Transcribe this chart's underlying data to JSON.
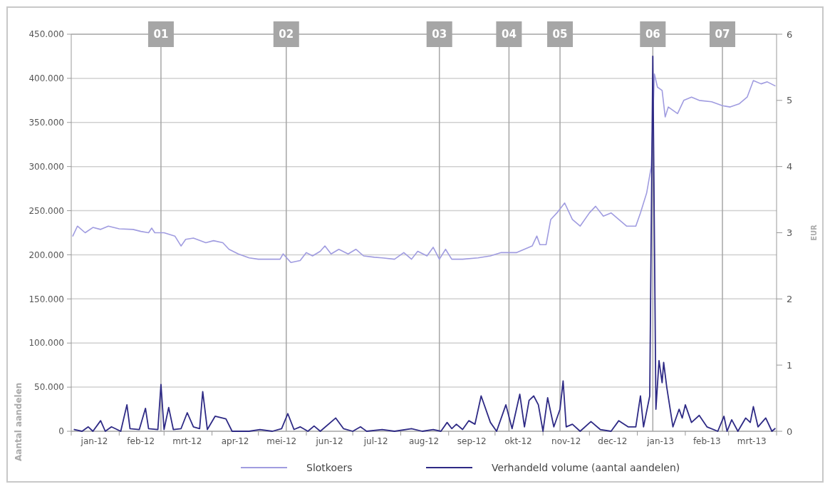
{
  "chart_data": {
    "type": "line",
    "ylabel": "Aantal aandelen",
    "y2label": "EUR",
    "xlim": [
      "2012-01-01",
      "2013-04-01"
    ],
    "xticks": [
      {
        "value": "2012-01-01",
        "label": null
      },
      {
        "value": "2012-01-16",
        "label": "jan-12"
      },
      {
        "value": "2012-02-01",
        "label": null
      },
      {
        "value": "2012-02-15",
        "label": "feb-12"
      },
      {
        "value": "2012-03-01",
        "label": null
      },
      {
        "value": "2012-03-16",
        "label": "mrt-12"
      },
      {
        "value": "2012-04-01",
        "label": null
      },
      {
        "value": "2012-04-16",
        "label": "apr-12"
      },
      {
        "value": "2012-05-01",
        "label": null
      },
      {
        "value": "2012-05-16",
        "label": "mei-12"
      },
      {
        "value": "2012-06-01",
        "label": null
      },
      {
        "value": "2012-06-16",
        "label": "jun-12"
      },
      {
        "value": "2012-07-01",
        "label": null
      },
      {
        "value": "2012-07-16",
        "label": "jul-12"
      },
      {
        "value": "2012-08-01",
        "label": null
      },
      {
        "value": "2012-08-16",
        "label": "aug-12"
      },
      {
        "value": "2012-09-01",
        "label": null
      },
      {
        "value": "2012-09-16",
        "label": "sep-12"
      },
      {
        "value": "2012-10-01",
        "label": null
      },
      {
        "value": "2012-10-16",
        "label": "okt-12"
      },
      {
        "value": "2012-11-01",
        "label": null
      },
      {
        "value": "2012-11-16",
        "label": "nov-12"
      },
      {
        "value": "2012-12-01",
        "label": null
      },
      {
        "value": "2012-12-16",
        "label": "dec-12"
      },
      {
        "value": "2013-01-01",
        "label": null
      },
      {
        "value": "2013-01-16",
        "label": "jan-13"
      },
      {
        "value": "2013-02-01",
        "label": null
      },
      {
        "value": "2013-02-15",
        "label": "feb-13"
      },
      {
        "value": "2013-03-01",
        "label": null
      },
      {
        "value": "2013-03-16",
        "label": "mrt-13"
      },
      {
        "value": "2013-04-01",
        "label": null
      }
    ],
    "ylim": [
      0,
      450000
    ],
    "yticks": [
      {
        "value": 0,
        "label": "0"
      },
      {
        "value": 50000,
        "label": "50.000"
      },
      {
        "value": 100000,
        "label": "100.000"
      },
      {
        "value": 150000,
        "label": "150.000"
      },
      {
        "value": 200000,
        "label": "200.000"
      },
      {
        "value": 250000,
        "label": "250.000"
      },
      {
        "value": 300000,
        "label": "300.000"
      },
      {
        "value": 350000,
        "label": "350.000"
      },
      {
        "value": 400000,
        "label": "400.000"
      },
      {
        "value": 450000,
        "label": "450.000"
      }
    ],
    "y2lim": [
      0,
      6
    ],
    "y2ticks": [
      0,
      1,
      2,
      3,
      4,
      5,
      6
    ],
    "grid": "y",
    "legend": "bottom",
    "ref_lines": [
      {
        "axis": "x",
        "value": "2012-02-28",
        "label": "01",
        "color": "#a6a6a6"
      },
      {
        "axis": "x",
        "value": "2012-05-19",
        "label": "02",
        "color": "#a6a6a6"
      },
      {
        "axis": "x",
        "value": "2012-08-26",
        "label": "03",
        "color": "#a6a6a6"
      },
      {
        "axis": "x",
        "value": "2012-10-10",
        "label": "04",
        "color": "#a6a6a6"
      },
      {
        "axis": "x",
        "value": "2012-11-12",
        "label": "05",
        "color": "#a6a6a6"
      },
      {
        "axis": "x",
        "value": "2013-01-11",
        "label": "06",
        "color": "#a6a6a6"
      },
      {
        "axis": "x",
        "value": "2013-02-25",
        "label": "07",
        "color": "#a6a6a6"
      }
    ],
    "series": [
      {
        "name": "Slotkoers",
        "color": "#a09ce0",
        "axis": "y2",
        "x": [
          "2012-01-02",
          "2012-01-05",
          "2012-01-10",
          "2012-01-15",
          "2012-01-20",
          "2012-01-25",
          "2012-02-01",
          "2012-02-10",
          "2012-02-15",
          "2012-02-20",
          "2012-02-22",
          "2012-02-24",
          "2012-03-01",
          "2012-03-08",
          "2012-03-12",
          "2012-03-15",
          "2012-03-20",
          "2012-03-28",
          "2012-04-02",
          "2012-04-08",
          "2012-04-12",
          "2012-04-18",
          "2012-04-25",
          "2012-05-01",
          "2012-05-08",
          "2012-05-15",
          "2012-05-17",
          "2012-05-22",
          "2012-05-28",
          "2012-06-01",
          "2012-06-05",
          "2012-06-10",
          "2012-06-13",
          "2012-06-17",
          "2012-06-22",
          "2012-06-28",
          "2012-07-03",
          "2012-07-08",
          "2012-07-15",
          "2012-07-20",
          "2012-07-28",
          "2012-08-03",
          "2012-08-08",
          "2012-08-12",
          "2012-08-18",
          "2012-08-22",
          "2012-08-26",
          "2012-08-30",
          "2012-09-03",
          "2012-09-10",
          "2012-09-20",
          "2012-09-28",
          "2012-10-05",
          "2012-10-15",
          "2012-10-25",
          "2012-10-28",
          "2012-10-30",
          "2012-11-03",
          "2012-11-06",
          "2012-11-10",
          "2012-11-15",
          "2012-11-20",
          "2012-11-25",
          "2012-12-01",
          "2012-12-05",
          "2012-12-10",
          "2012-12-15",
          "2012-12-25",
          "2012-12-31",
          "2013-01-03",
          "2013-01-07",
          "2013-01-10",
          "2013-01-12",
          "2013-01-14",
          "2013-01-17",
          "2013-01-19",
          "2013-01-21",
          "2013-01-27",
          "2013-01-31",
          "2013-02-05",
          "2013-02-10",
          "2013-02-18",
          "2013-02-25",
          "2013-03-02",
          "2013-03-08",
          "2013-03-13",
          "2013-03-17",
          "2013-03-22",
          "2013-03-26",
          "2013-03-31"
        ],
        "values": [
          2.95,
          3.1,
          3.0,
          3.08,
          3.05,
          3.1,
          3.06,
          3.05,
          3.02,
          3.0,
          3.07,
          3.0,
          3.0,
          2.95,
          2.8,
          2.9,
          2.92,
          2.85,
          2.88,
          2.85,
          2.75,
          2.68,
          2.62,
          2.6,
          2.6,
          2.6,
          2.68,
          2.55,
          2.58,
          2.7,
          2.65,
          2.72,
          2.8,
          2.68,
          2.75,
          2.68,
          2.75,
          2.65,
          2.63,
          2.62,
          2.6,
          2.7,
          2.6,
          2.72,
          2.65,
          2.78,
          2.6,
          2.75,
          2.6,
          2.6,
          2.62,
          2.65,
          2.7,
          2.7,
          2.8,
          2.95,
          2.82,
          2.82,
          3.2,
          3.3,
          3.45,
          3.2,
          3.1,
          3.3,
          3.4,
          3.25,
          3.3,
          3.1,
          3.1,
          3.3,
          3.6,
          4.0,
          5.4,
          5.2,
          5.15,
          4.75,
          4.9,
          4.8,
          5.0,
          5.05,
          5.0,
          4.98,
          4.92,
          4.9,
          4.95,
          5.05,
          5.3,
          5.25,
          5.28,
          5.22
        ]
      },
      {
        "name": "Verhandeld volume (aantal aandelen)",
        "color": "#2e2a85",
        "axis": "y",
        "x": [
          "2012-01-03",
          "2012-01-08",
          "2012-01-12",
          "2012-01-15",
          "2012-01-20",
          "2012-01-23",
          "2012-01-27",
          "2012-02-02",
          "2012-02-06",
          "2012-02-08",
          "2012-02-14",
          "2012-02-18",
          "2012-02-20",
          "2012-02-26",
          "2012-02-28",
          "2012-03-01",
          "2012-03-04",
          "2012-03-07",
          "2012-03-12",
          "2012-03-16",
          "2012-03-20",
          "2012-03-24",
          "2012-03-26",
          "2012-03-29",
          "2012-04-03",
          "2012-04-10",
          "2012-04-14",
          "2012-04-25",
          "2012-05-02",
          "2012-05-10",
          "2012-05-16",
          "2012-05-20",
          "2012-05-24",
          "2012-05-28",
          "2012-06-02",
          "2012-06-06",
          "2012-06-10",
          "2012-06-20",
          "2012-06-25",
          "2012-07-01",
          "2012-07-06",
          "2012-07-10",
          "2012-07-20",
          "2012-07-28",
          "2012-08-08",
          "2012-08-15",
          "2012-08-22",
          "2012-08-27",
          "2012-08-31",
          "2012-09-03",
          "2012-09-06",
          "2012-09-10",
          "2012-09-14",
          "2012-09-18",
          "2012-09-22",
          "2012-09-28",
          "2012-10-02",
          "2012-10-08",
          "2012-10-12",
          "2012-10-17",
          "2012-10-20",
          "2012-10-23",
          "2012-10-26",
          "2012-10-29",
          "2012-11-01",
          "2012-11-04",
          "2012-11-08",
          "2012-11-12",
          "2012-11-14",
          "2012-11-16",
          "2012-11-20",
          "2012-11-25",
          "2012-12-02",
          "2012-12-08",
          "2012-12-15",
          "2012-12-20",
          "2012-12-26",
          "2012-12-31",
          "2013-01-03",
          "2013-01-05",
          "2013-01-09",
          "2013-01-11",
          "2013-01-13",
          "2013-01-15",
          "2013-01-17",
          "2013-01-18",
          "2013-01-20",
          "2013-01-24",
          "2013-01-28",
          "2013-01-30",
          "2013-02-01",
          "2013-02-05",
          "2013-02-10",
          "2013-02-15",
          "2013-02-22",
          "2013-02-26",
          "2013-02-28",
          "2013-03-03",
          "2013-03-07",
          "2013-03-12",
          "2013-03-15",
          "2013-03-17",
          "2013-03-20",
          "2013-03-25",
          "2013-03-29",
          "2013-03-31"
        ],
        "values": [
          2000,
          0,
          5000,
          0,
          12000,
          0,
          5000,
          0,
          30000,
          3000,
          2000,
          26000,
          3000,
          2000,
          53000,
          2000,
          27000,
          2000,
          3000,
          21000,
          5000,
          3000,
          45000,
          2000,
          17000,
          14000,
          0,
          0,
          2000,
          0,
          3000,
          20000,
          2000,
          5000,
          0,
          6000,
          0,
          15000,
          3000,
          0,
          5000,
          0,
          2000,
          0,
          3000,
          0,
          2000,
          0,
          10000,
          3000,
          8000,
          2000,
          12000,
          8000,
          40000,
          10000,
          0,
          30000,
          3000,
          42000,
          5000,
          35000,
          40000,
          30000,
          0,
          38000,
          5000,
          25000,
          57000,
          5000,
          8000,
          0,
          11000,
          2000,
          0,
          12000,
          5000,
          5000,
          40000,
          5000,
          40000,
          425000,
          25000,
          80000,
          55000,
          78000,
          50000,
          5000,
          25000,
          15000,
          30000,
          10000,
          18000,
          5000,
          0,
          17000,
          0,
          13000,
          0,
          15000,
          10000,
          28000,
          5000,
          15000,
          0,
          3000
        ]
      }
    ]
  }
}
